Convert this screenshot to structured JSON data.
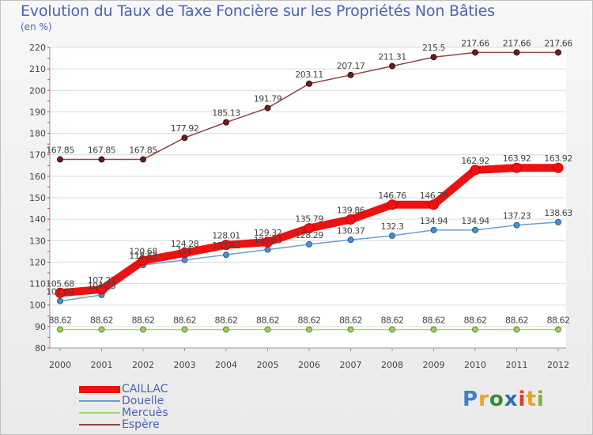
{
  "title": "Evolution du Taux de Taxe Foncière sur les Propriétés Non Bâties",
  "unit_label": "(en %)",
  "logo": {
    "text": "Proxiti",
    "colors": [
      "#3f7fc9",
      "#f0a21d",
      "#2e8f3b",
      "#2f6bb5",
      "#e03a2a",
      "#e8a21b",
      "#7fb23a"
    ]
  },
  "chart_data": {
    "type": "line",
    "x": [
      "2000",
      "2001",
      "2002",
      "2003",
      "2004",
      "2005",
      "2006",
      "2007",
      "2008",
      "2009",
      "2010",
      "2011",
      "2012"
    ],
    "ylim": [
      80,
      220
    ],
    "yticks": [
      80,
      90,
      100,
      110,
      120,
      130,
      140,
      150,
      160,
      170,
      180,
      190,
      200,
      210,
      220
    ],
    "grid": true,
    "legend_position": "bottom-left",
    "series": [
      {
        "name": "CAILLAC",
        "color": "#ee1111",
        "values": [
          105.68,
          107.27,
          120.68,
          124.28,
          128.01,
          129.32,
          135.79,
          139.86,
          146.76,
          146.76,
          162.92,
          163.92,
          163.92
        ],
        "labels": [
          "105.68",
          "107.27",
          "120.68",
          "124.28",
          "128.01",
          "129.32",
          "135.79",
          "139.86",
          "146.76",
          "146.76",
          "162.92",
          "163.92",
          "163.92"
        ]
      },
      {
        "name": "Douelle",
        "color": "#6a9fd0",
        "values": [
          101.89,
          104.73,
          118.63,
          121,
          123.42,
          125.83,
          128.29,
          130.37,
          132.3,
          134.94,
          134.94,
          137.23,
          138.63
        ],
        "labels": [
          "101.89",
          "104.73",
          "118.63",
          "121",
          "123.42",
          "125.83",
          "128.29",
          "130.37",
          "132.3",
          "134.94",
          "134.94",
          "137.23",
          "138.63"
        ]
      },
      {
        "name": "Mercuès",
        "color": "#a4d86a",
        "values": [
          88.62,
          88.62,
          88.62,
          88.62,
          88.62,
          88.62,
          88.62,
          88.62,
          88.62,
          88.62,
          88.62,
          88.62,
          88.62
        ],
        "labels": [
          "88.62",
          "88.62",
          "88.62",
          "88.62",
          "88.62",
          "88.62",
          "88.62",
          "88.62",
          "88.62",
          "88.62",
          "88.62",
          "88.62",
          "88.62"
        ]
      },
      {
        "name": "Espère",
        "color": "#8e4444",
        "values": [
          167.85,
          167.85,
          167.85,
          177.92,
          185.13,
          191.79,
          203.11,
          207.17,
          211.31,
          215.5,
          217.66,
          217.66,
          217.66
        ],
        "labels": [
          "167.85",
          "167.85",
          "167.85",
          "177.92",
          "185.13",
          "191.79",
          "203.11",
          "207.17",
          "211.31",
          "215.5",
          "217.66",
          "217.66",
          "217.66"
        ]
      }
    ]
  }
}
